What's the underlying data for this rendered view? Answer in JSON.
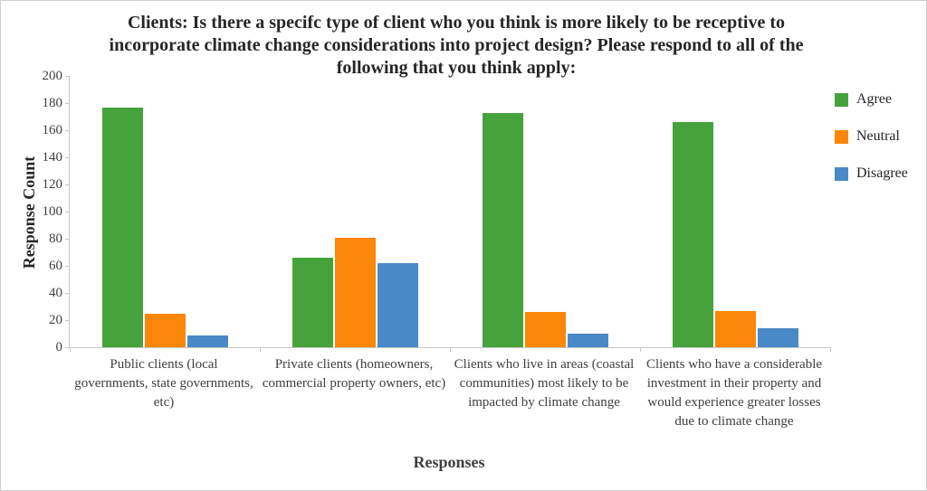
{
  "page": {
    "background": "#ffffff",
    "border_color": "#cfcfcf",
    "axis_color": "#c6c6c6",
    "text_color": "#262626",
    "tick_text_color": "#3f3f3f"
  },
  "chart_data": {
    "type": "bar",
    "title": "Clients: Is there a specifc type of client who you think is more likely to be receptive to incorporate climate change considerations into project design? Please respond to all of the following that you think apply:",
    "xlabel": "Responses",
    "ylabel": "Response Count",
    "ylim": [
      0,
      200
    ],
    "yticks": [
      0,
      20,
      40,
      60,
      80,
      100,
      120,
      140,
      160,
      180,
      200
    ],
    "grid": false,
    "legend_position": "right",
    "categories": [
      "Public clients (local governments, state governments, etc)",
      "Private clients (homeowners, commercial property owners, etc)",
      "Clients who live in areas (coastal communities) most likely to be impacted by climate change",
      "Clients who have a considerable investment in their property and would experience greater losses due to climate change"
    ],
    "series": [
      {
        "name": "Agree",
        "color": "#46a33c",
        "values": [
          177,
          66,
          173,
          166
        ]
      },
      {
        "name": "Neutral",
        "color": "#fb8608",
        "values": [
          25,
          81,
          26,
          27
        ]
      },
      {
        "name": "Disagree",
        "color": "#4a89c8",
        "values": [
          9,
          62,
          10,
          14
        ]
      }
    ]
  }
}
